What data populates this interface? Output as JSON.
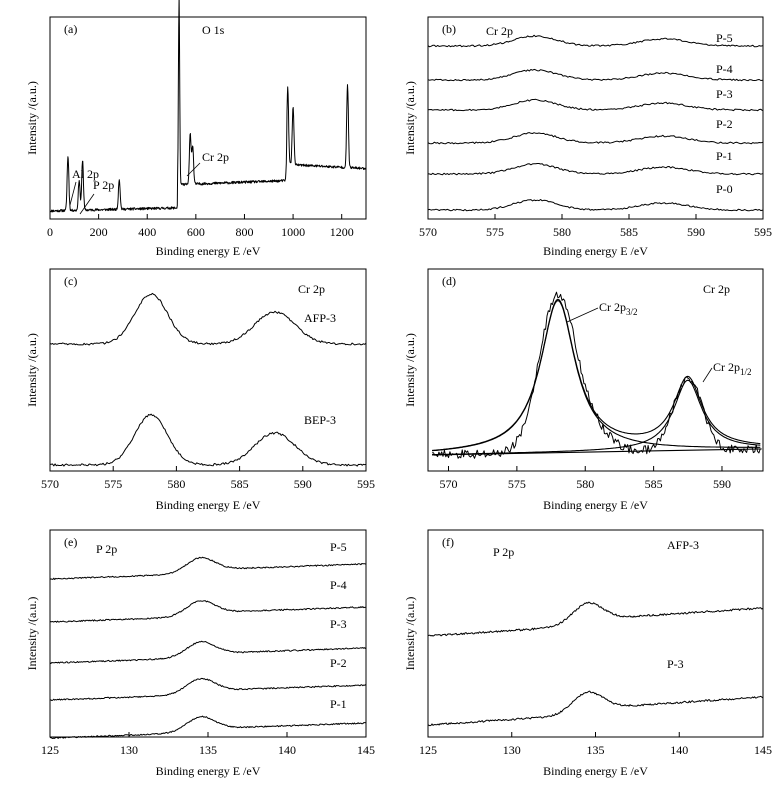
{
  "chart_data": [
    {
      "panel": "(a)",
      "type": "line",
      "xlabel": "Binding energy E /eV",
      "ylabel": "Intensity /(a.u.)",
      "xlim": [
        0,
        1300
      ],
      "xticks": [
        0,
        200,
        400,
        600,
        800,
        1000,
        1200
      ],
      "grid": false,
      "peaks": [
        {
          "x": 74,
          "h": 0.27
        },
        {
          "x": 120,
          "h": 0.15
        },
        {
          "x": 134,
          "h": 0.25
        },
        {
          "x": 285,
          "h": 0.15
        },
        {
          "x": 531,
          "h": 0.93
        },
        {
          "x": 577,
          "h": 0.25
        },
        {
          "x": 587,
          "h": 0.19
        },
        {
          "x": 978,
          "h": 0.38
        },
        {
          "x": 1000,
          "h": 0.29
        },
        {
          "x": 1224,
          "h": 0.41
        }
      ],
      "annotations": [
        {
          "text": "Al 2p",
          "x": 74
        },
        {
          "text": "P 2p",
          "x": 134
        },
        {
          "text": "O 1s",
          "x": 531
        },
        {
          "text": "Cr 2p",
          "x": 577
        }
      ]
    },
    {
      "panel": "(b)",
      "type": "line",
      "title": "Cr 2p",
      "xlabel": "Binding energy E /eV",
      "ylabel": "Intensity /(a.u.)",
      "xlim": [
        570,
        595
      ],
      "xticks": [
        570,
        575,
        580,
        585,
        590,
        595
      ],
      "grid": false,
      "peaks": [
        578,
        587.5
      ],
      "series": [
        {
          "name": "P-5"
        },
        {
          "name": "P-4"
        },
        {
          "name": "P-3"
        },
        {
          "name": "P-2"
        },
        {
          "name": "P-1"
        },
        {
          "name": "P-0"
        }
      ]
    },
    {
      "panel": "(c)",
      "type": "line",
      "title": "Cr 2p",
      "xlabel": "Binding energy E /eV",
      "ylabel": "Intensity /(a.u.)",
      "xlim": [
        570,
        595
      ],
      "xticks": [
        570,
        575,
        580,
        585,
        590,
        595
      ],
      "grid": false,
      "peaks": [
        578,
        587.5
      ],
      "series": [
        {
          "name": "AFP-3"
        },
        {
          "name": "BEP-3"
        }
      ]
    },
    {
      "panel": "(d)",
      "type": "line",
      "title": "Cr 2p",
      "xlabel": "Binding energy E /eV",
      "ylabel": "Intensity /(a.u.)",
      "xlim": [
        568.5,
        593
      ],
      "xticks": [
        570,
        575,
        580,
        585,
        590
      ],
      "grid": false,
      "peaks": [
        578,
        587.5
      ],
      "annotations": [
        {
          "text": "Cr 2p",
          "sub": "3/2",
          "x": 578
        },
        {
          "text": "Cr 2p",
          "sub": "1/2",
          "x": 587.5
        }
      ]
    },
    {
      "panel": "(e)",
      "type": "line",
      "title": "P 2p",
      "xlabel": "Binding energy E /eV",
      "ylabel": "Intensity /(a.u.)",
      "xlim": [
        125,
        145
      ],
      "xticks": [
        125,
        130,
        135,
        140,
        145
      ],
      "grid": false,
      "peaks": [
        134.5
      ],
      "series": [
        {
          "name": "P-5"
        },
        {
          "name": "P-4"
        },
        {
          "name": "P-3"
        },
        {
          "name": "P-2"
        },
        {
          "name": "P-1"
        }
      ]
    },
    {
      "panel": "(f)",
      "type": "line",
      "title": "P 2p",
      "xlabel": "Binding energy E /eV",
      "ylabel": "Intensity /(a.u.)",
      "xlim": [
        125,
        145
      ],
      "xticks": [
        125,
        130,
        135,
        140,
        145
      ],
      "grid": false,
      "peaks": [
        134.5
      ],
      "series": [
        {
          "name": "AFP-3"
        },
        {
          "name": "P-3"
        }
      ]
    }
  ]
}
